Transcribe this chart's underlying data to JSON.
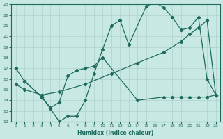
{
  "xlabel": "Humidex (Indice chaleur)",
  "xlim": [
    -0.5,
    23.5
  ],
  "ylim": [
    12,
    23
  ],
  "xticks": [
    0,
    1,
    2,
    3,
    4,
    5,
    6,
    7,
    8,
    9,
    10,
    11,
    12,
    13,
    14,
    15,
    16,
    17,
    18,
    19,
    20,
    21,
    22,
    23
  ],
  "yticks": [
    12,
    13,
    14,
    15,
    16,
    17,
    18,
    19,
    20,
    21,
    22,
    23
  ],
  "bg_color": "#c8e8e4",
  "line_color": "#1e6b5e",
  "grid_color": "#b0d0cc",
  "line1_x": [
    0,
    1,
    3,
    4,
    5,
    6,
    7,
    8,
    9,
    10,
    11,
    12,
    13,
    15,
    16,
    17,
    18,
    19,
    20,
    21,
    22,
    23
  ],
  "line1_y": [
    17.0,
    15.8,
    14.3,
    13.2,
    12.0,
    12.5,
    12.5,
    14.0,
    16.5,
    18.8,
    21.0,
    21.5,
    19.2,
    22.8,
    23.2,
    22.7,
    21.8,
    20.6,
    20.8,
    21.8,
    16.0,
    14.5
  ],
  "line2_x": [
    0,
    1,
    3,
    5,
    8,
    11,
    14,
    17,
    19,
    20,
    21,
    22,
    23
  ],
  "line2_y": [
    15.5,
    15.0,
    14.5,
    14.8,
    15.5,
    16.5,
    17.5,
    18.5,
    19.5,
    20.2,
    20.8,
    21.5,
    14.5
  ],
  "line3_x": [
    1,
    3,
    4,
    5,
    6,
    7,
    8,
    9,
    10,
    14,
    17,
    18,
    19,
    20,
    21,
    22,
    23
  ],
  "line3_y": [
    15.8,
    14.3,
    13.3,
    13.8,
    16.3,
    16.8,
    17.0,
    17.2,
    18.0,
    14.0,
    14.3,
    14.3,
    14.3,
    14.3,
    14.3,
    14.3,
    14.5
  ]
}
